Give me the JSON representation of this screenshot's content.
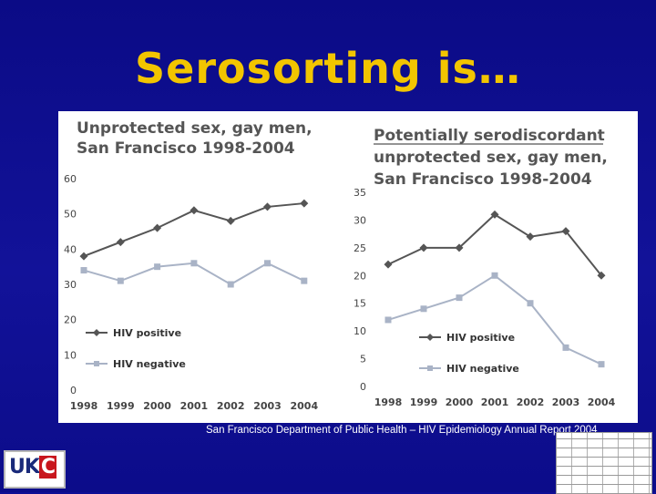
{
  "slide": {
    "title": "Serosorting is…",
    "caption": "San Francisco Department of Public Health – HIV Epidemiology Annual Report 2004",
    "logo_text": "UK",
    "logo_accent": "C"
  },
  "colors": {
    "background": "#0e0e95",
    "title": "#f2c500",
    "hiv_positive": "#555555",
    "hiv_negative": "#a9b3c6"
  },
  "chart_data": [
    {
      "type": "line",
      "title": "Unprotected sex, gay men, San Francisco 1998-2004",
      "title_lines": [
        "Unprotected sex, gay men,",
        "San Francisco 1998-2004"
      ],
      "x": [
        "1998",
        "1999",
        "2000",
        "2001",
        "2002",
        "2003",
        "2004"
      ],
      "ylim": [
        0,
        60
      ],
      "yticks": [
        0,
        10,
        20,
        30,
        40,
        50,
        60
      ],
      "series": [
        {
          "name": "HIV positive",
          "marker": "diamond",
          "values": [
            38,
            42,
            46,
            51,
            48,
            52,
            53
          ]
        },
        {
          "name": "HIV negative",
          "marker": "square",
          "values": [
            34,
            31,
            35,
            36,
            30,
            36,
            31
          ]
        }
      ],
      "legend": "lower-left",
      "grid": false
    },
    {
      "type": "line",
      "title": "Potentially serodiscordant unprotected sex, gay men, San Francisco 1998-2004",
      "title_lines": [
        "Potentially serodiscordant",
        "unprotected sex, gay men,",
        "San Francisco 1998-2004"
      ],
      "x": [
        "1998",
        "1999",
        "2000",
        "2001",
        "2002",
        "2003",
        "2004"
      ],
      "ylim": [
        0,
        35
      ],
      "yticks": [
        0,
        5,
        10,
        15,
        20,
        25,
        30,
        35
      ],
      "series": [
        {
          "name": "HIV positive",
          "marker": "diamond",
          "values": [
            22,
            25,
            25,
            31,
            27,
            28,
            20
          ]
        },
        {
          "name": "HIV negative",
          "marker": "square",
          "values": [
            12,
            14,
            16,
            20,
            15,
            7,
            4
          ]
        }
      ],
      "legend": "lower-left",
      "grid": false
    }
  ]
}
